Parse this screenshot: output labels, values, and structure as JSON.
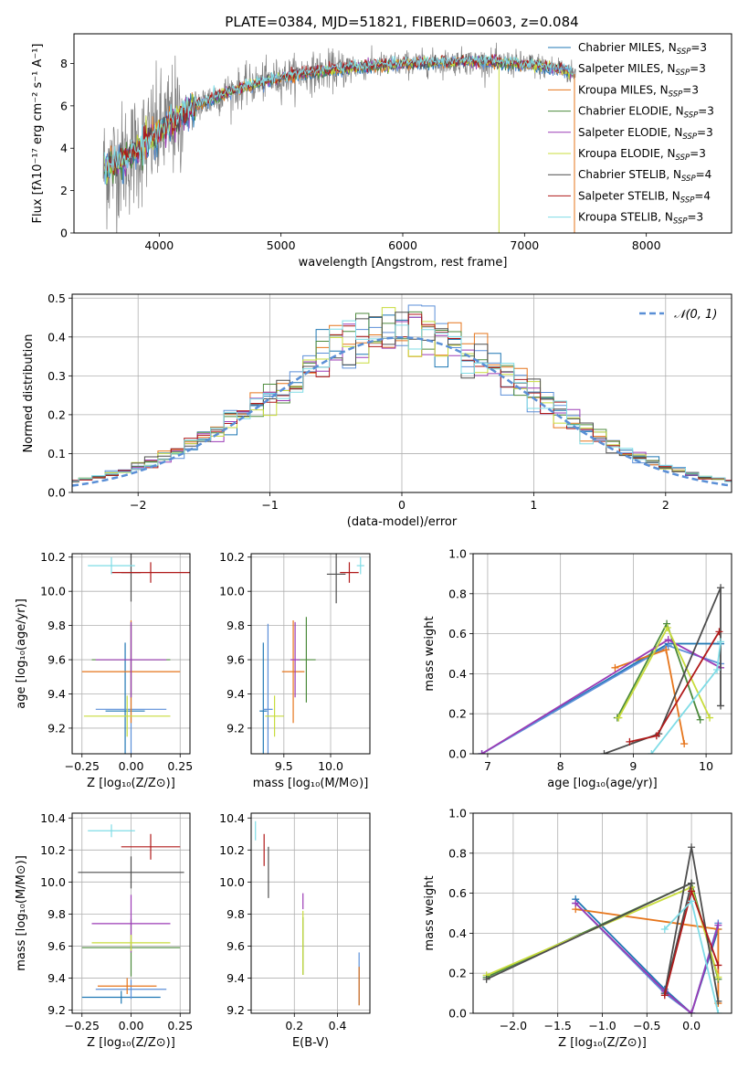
{
  "figure": {
    "title": "PLATE=0384, MJD=51821, FIBERID=0603, z=0.084"
  },
  "colors": {
    "data_spectrum": "#808080",
    "grid": "#b0b0b0",
    "normal_curve": "#5a8fd6"
  },
  "models": [
    {
      "name": "Chabrier MILES",
      "nssp": "3",
      "color": "#1f77b4"
    },
    {
      "name": "Salpeter MILES",
      "nssp": "3",
      "color": "#5b8fd8"
    },
    {
      "name": "Kroupa MILES",
      "nssp": "3",
      "color": "#e6751b"
    },
    {
      "name": "Chabrier ELODIE",
      "nssp": "3",
      "color": "#4c8a3c"
    },
    {
      "name": "Salpeter ELODIE",
      "nssp": "3",
      "color": "#9b3bb5"
    },
    {
      "name": "Kroupa ELODIE",
      "nssp": "3",
      "color": "#c8dc3c"
    },
    {
      "name": "Chabrier STELIB",
      "nssp": "4",
      "color": "#4d4d4d"
    },
    {
      "name": "Salpeter STELIB",
      "nssp": "4",
      "color": "#b01a1a"
    },
    {
      "name": "Kroupa STELIB",
      "nssp": "3",
      "color": "#7fdce6"
    }
  ],
  "chart_data": [
    {
      "id": "spectrum",
      "type": "line",
      "xlabel": "wavelength [Angstrom, rest frame]",
      "ylabel": "Flux [fλ10⁻¹⁷ erg cm⁻² s⁻¹ A⁻¹]",
      "xlim": [
        3300,
        8700
      ],
      "ylim": [
        0,
        9.4
      ],
      "xticks": [
        4000,
        5000,
        6000,
        7000,
        8000
      ],
      "yticks": [
        0,
        2,
        4,
        6,
        8
      ],
      "grid": false,
      "legend": "upper right",
      "continuum": {
        "wavelength": [
          3550,
          3700,
          3900,
          4100,
          4300,
          4500,
          4700,
          4900,
          5100,
          5300,
          5500,
          5700,
          5900,
          6100,
          6300,
          6500,
          6700,
          6900,
          7100,
          7300,
          7400
        ],
        "flux": [
          3.0,
          3.4,
          4.3,
          5.2,
          6.0,
          6.5,
          6.9,
          7.2,
          7.45,
          7.6,
          7.75,
          7.85,
          7.95,
          8.0,
          8.05,
          8.1,
          8.05,
          8.0,
          7.9,
          7.75,
          7.5
        ]
      }
    },
    {
      "id": "residuals",
      "type": "line",
      "xlabel": "(data-model)/error",
      "ylabel": "Normed distribution",
      "xlim": [
        -2.5,
        2.5
      ],
      "ylim": [
        0,
        0.51
      ],
      "xticks": [
        -2,
        -1,
        0,
        1,
        2
      ],
      "yticks": [
        0.0,
        0.1,
        0.2,
        0.3,
        0.4,
        0.5
      ],
      "grid": true,
      "legend": "upper right",
      "legend_label": "𝒩(0, 1)",
      "bin_width": 0.1
    },
    {
      "id": "age_vs_Z",
      "type": "scatter",
      "xlabel": "Z [log₁₀(Z/Z⊙)]",
      "ylabel": "age  [log₁₀(age/yr)]",
      "xlim": [
        -0.3,
        0.3
      ],
      "ylim": [
        9.05,
        10.22
      ],
      "xticks": [
        -0.25,
        0.0,
        0.25
      ],
      "xticklabels": [
        "−0.25",
        "0.00",
        "0.25"
      ],
      "yticks": [
        9.2,
        9.4,
        9.6,
        9.8,
        10.0,
        10.2
      ],
      "points": [
        {
          "x": -0.03,
          "y": 9.3,
          "xerr": 0.1,
          "yerr": 0.4,
          "model": 1
        },
        {
          "x": 0.0,
          "y": 9.31,
          "xerr": 0.18,
          "yerr": 0.5,
          "model": 2
        },
        {
          "x": 0.0,
          "y": 9.53,
          "xerr": 0.25,
          "yerr": 0.3,
          "model": 3
        },
        {
          "x": 0.0,
          "y": 9.6,
          "xerr": 0.2,
          "yerr": 0.22,
          "model": 4
        },
        {
          "x": 0.0,
          "y": 9.6,
          "xerr": 0.18,
          "yerr": 0.22,
          "model": 5
        },
        {
          "x": -0.02,
          "y": 9.27,
          "xerr": 0.22,
          "yerr": 0.12,
          "model": 6
        },
        {
          "x": 0.0,
          "y": 10.11,
          "xerr": 0.05,
          "yerr": 0.17,
          "model": 7
        },
        {
          "x": 0.1,
          "y": 10.11,
          "xerr": 0.2,
          "yerr": 0.06,
          "model": 8
        },
        {
          "x": -0.1,
          "y": 10.15,
          "xerr": 0.12,
          "yerr": 0.05,
          "model": 9
        }
      ]
    },
    {
      "id": "age_vs_mass",
      "type": "scatter",
      "xlabel": "mass [log₁₀(M/M⊙)]",
      "ylabel": "",
      "xlim": [
        9.15,
        10.42
      ],
      "ylim": [
        9.05,
        10.22
      ],
      "xticks": [
        9.5,
        10.0
      ],
      "xticklabels": [
        "9.5",
        "10.0"
      ],
      "yticks": [
        9.2,
        9.4,
        9.6,
        9.8,
        10.0,
        10.2
      ],
      "points": [
        {
          "x": 9.28,
          "y": 9.3,
          "xerr": 0.04,
          "yerr": 0.4,
          "model": 1
        },
        {
          "x": 9.33,
          "y": 9.31,
          "xerr": 0.05,
          "yerr": 0.5,
          "model": 2
        },
        {
          "x": 9.6,
          "y": 9.53,
          "xerr": 0.12,
          "yerr": 0.3,
          "model": 3
        },
        {
          "x": 9.74,
          "y": 9.6,
          "xerr": 0.1,
          "yerr": 0.25,
          "model": 4
        },
        {
          "x": 9.62,
          "y": 9.6,
          "xerr": 0.05,
          "yerr": 0.22,
          "model": 5
        },
        {
          "x": 9.4,
          "y": 9.27,
          "xerr": 0.1,
          "yerr": 0.12,
          "model": 6
        },
        {
          "x": 10.06,
          "y": 10.1,
          "xerr": 0.1,
          "yerr": 0.17,
          "model": 7
        },
        {
          "x": 10.2,
          "y": 10.11,
          "xerr": 0.1,
          "yerr": 0.06,
          "model": 8
        },
        {
          "x": 10.32,
          "y": 10.15,
          "xerr": 0.04,
          "yerr": 0.05,
          "model": 9
        }
      ]
    },
    {
      "id": "weight_vs_age",
      "type": "line",
      "xlabel": "age  [log₁₀(age/yr)]",
      "ylabel": "mass weight",
      "xlim": [
        6.8,
        10.35
      ],
      "ylim": [
        0,
        1
      ],
      "xticks": [
        7,
        8,
        9,
        10
      ],
      "yticks": [
        0.0,
        0.2,
        0.4,
        0.6,
        0.8,
        1.0
      ],
      "grid": true,
      "series": [
        {
          "model": 1,
          "x": [
            6.92,
            9.48,
            10.2
          ],
          "y": [
            0.0,
            0.55,
            0.55
          ]
        },
        {
          "model": 2,
          "x": [
            6.92,
            9.48,
            10.2
          ],
          "y": [
            0.0,
            0.54,
            0.45
          ]
        },
        {
          "model": 3,
          "x": [
            8.75,
            9.45,
            9.7
          ],
          "y": [
            0.43,
            0.52,
            0.05
          ]
        },
        {
          "model": 4,
          "x": [
            8.78,
            9.46,
            9.92
          ],
          "y": [
            0.18,
            0.65,
            0.17
          ]
        },
        {
          "model": 5,
          "x": [
            6.92,
            9.48,
            10.2
          ],
          "y": [
            0.0,
            0.57,
            0.43
          ]
        },
        {
          "model": 6,
          "x": [
            8.8,
            9.47,
            10.05
          ],
          "y": [
            0.18,
            0.63,
            0.18
          ]
        },
        {
          "model": 7,
          "x": [
            8.6,
            9.35,
            10.2,
            10.2
          ],
          "y": [
            0.0,
            0.1,
            0.83,
            0.24
          ]
        },
        {
          "model": 8,
          "x": [
            8.95,
            9.32,
            10.18
          ],
          "y": [
            0.06,
            0.09,
            0.61
          ]
        },
        {
          "model": 9,
          "x": [
            9.25,
            10.15,
            10.2
          ],
          "y": [
            0.0,
            0.42,
            0.56
          ]
        }
      ]
    },
    {
      "id": "mass_vs_Z",
      "type": "scatter",
      "xlabel": "Z [log₁₀(Z/Z⊙)]",
      "ylabel": "mass [log₁₀(M/M⊙)]",
      "xlim": [
        -0.3,
        0.3
      ],
      "ylim": [
        9.18,
        10.43
      ],
      "xticks": [
        -0.25,
        0.0,
        0.25
      ],
      "xticklabels": [
        "−0.25",
        "0.00",
        "0.25"
      ],
      "yticks": [
        9.2,
        9.4,
        9.6,
        9.8,
        10.0,
        10.2,
        10.4
      ],
      "points": [
        {
          "x": -0.05,
          "y": 9.28,
          "xerr": 0.2,
          "yerr": 0.04,
          "model": 1
        },
        {
          "x": 0.0,
          "y": 9.33,
          "xerr": 0.18,
          "yerr": 0.06,
          "model": 2
        },
        {
          "x": -0.02,
          "y": 9.35,
          "xerr": 0.15,
          "yerr": 0.05,
          "model": 3
        },
        {
          "x": 0.0,
          "y": 9.59,
          "xerr": 0.25,
          "yerr": 0.18,
          "model": 4
        },
        {
          "x": 0.0,
          "y": 9.74,
          "xerr": 0.2,
          "yerr": 0.18,
          "model": 5
        },
        {
          "x": 0.0,
          "y": 9.62,
          "xerr": 0.2,
          "yerr": 0.05,
          "model": 6
        },
        {
          "x": 0.0,
          "y": 10.06,
          "xerr": 0.27,
          "yerr": 0.1,
          "model": 7
        },
        {
          "x": 0.1,
          "y": 10.22,
          "xerr": 0.15,
          "yerr": 0.08,
          "model": 8
        },
        {
          "x": -0.1,
          "y": 10.32,
          "xerr": 0.12,
          "yerr": 0.04,
          "model": 9
        }
      ]
    },
    {
      "id": "mass_vs_EBV",
      "type": "scatter",
      "xlabel": "E(B-V)",
      "ylabel": "",
      "xlim": [
        0.0,
        0.55
      ],
      "ylim": [
        9.18,
        10.43
      ],
      "xticks": [
        0.2,
        0.4
      ],
      "xticklabels": [
        "0.2",
        "0.4"
      ],
      "yticks": [
        9.2,
        9.4,
        9.6,
        9.8,
        10.0,
        10.2,
        10.4
      ],
      "points": [
        {
          "x": 0.5,
          "y": 9.35,
          "xerr": 0,
          "yerr": 0.12,
          "model": 1
        },
        {
          "x": 0.5,
          "y": 9.4,
          "xerr": 0,
          "yerr": 0.16,
          "model": 2
        },
        {
          "x": 0.5,
          "y": 9.35,
          "xerr": 0,
          "yerr": 0.12,
          "model": 3
        },
        {
          "x": 0.24,
          "y": 9.6,
          "xerr": 0,
          "yerr": 0.18,
          "model": 4
        },
        {
          "x": 0.24,
          "y": 9.88,
          "xerr": 0,
          "yerr": 0.05,
          "model": 5
        },
        {
          "x": 0.24,
          "y": 9.62,
          "xerr": 0,
          "yerr": 0.2,
          "model": 6
        },
        {
          "x": 0.08,
          "y": 10.06,
          "xerr": 0,
          "yerr": 0.16,
          "model": 7
        },
        {
          "x": 0.06,
          "y": 10.2,
          "xerr": 0,
          "yerr": 0.1,
          "model": 8
        },
        {
          "x": 0.02,
          "y": 10.32,
          "xerr": 0,
          "yerr": 0.06,
          "model": 9
        }
      ]
    },
    {
      "id": "weight_vs_Z",
      "type": "line",
      "xlabel": "Z [log₁₀(Z/Z⊙)]",
      "ylabel": "mass weight",
      "xlim": [
        -2.45,
        0.45
      ],
      "ylim": [
        0,
        1
      ],
      "xticks": [
        -2.0,
        -1.5,
        -1.0,
        -0.5,
        0.0
      ],
      "xticklabels": [
        "−2.0",
        "−1.5",
        "−1.0",
        "−0.5",
        "0.0"
      ],
      "yticks": [
        0.0,
        0.2,
        0.4,
        0.6,
        0.8,
        1.0
      ],
      "grid": true,
      "series": [
        {
          "model": 1,
          "x": [
            -1.3,
            -0.3,
            0.0,
            0.3
          ],
          "y": [
            0.57,
            0.12,
            0.0,
            0.42
          ]
        },
        {
          "model": 2,
          "x": [
            -1.3,
            -0.3,
            0.0,
            0.3
          ],
          "y": [
            0.55,
            0.1,
            0.0,
            0.45
          ]
        },
        {
          "model": 3,
          "x": [
            -1.3,
            0.3,
            0.3
          ],
          "y": [
            0.52,
            0.42,
            0.05
          ]
        },
        {
          "model": 4,
          "x": [
            -2.3,
            0.0,
            0.3
          ],
          "y": [
            0.18,
            0.65,
            0.17
          ]
        },
        {
          "model": 5,
          "x": [
            -1.3,
            -0.3,
            0.0,
            0.3
          ],
          "y": [
            0.55,
            0.11,
            0.0,
            0.44
          ]
        },
        {
          "model": 6,
          "x": [
            -2.3,
            0.0,
            0.3
          ],
          "y": [
            0.19,
            0.63,
            0.18
          ]
        },
        {
          "model": 7,
          "x": [
            -2.3,
            0.0,
            -0.3,
            0.0,
            0.3
          ],
          "y": [
            0.17,
            0.65,
            0.1,
            0.83,
            0.06
          ]
        },
        {
          "model": 8,
          "x": [
            -0.3,
            0.0,
            0.3
          ],
          "y": [
            0.09,
            0.61,
            0.24
          ]
        },
        {
          "model": 9,
          "x": [
            -0.3,
            0.0,
            0.3
          ],
          "y": [
            0.42,
            0.56,
            0.0
          ]
        }
      ]
    }
  ]
}
